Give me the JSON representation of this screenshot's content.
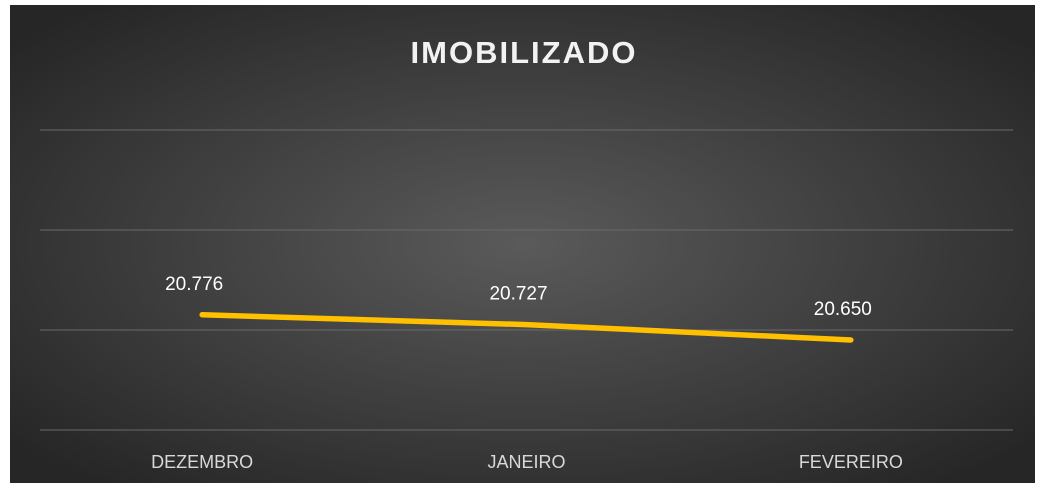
{
  "chart_data": {
    "type": "line",
    "title": "IMOBILIZADO",
    "categories": [
      "DEZEMBRO",
      "JANEIRO",
      "FEVEREIRO"
    ],
    "values": [
      20776,
      20727,
      20650
    ],
    "value_labels": [
      "20.776",
      "20.727",
      "20.650"
    ],
    "color": "#ffc000",
    "ylim": [
      20200,
      21700
    ],
    "yticks": [
      20200,
      20700,
      21200,
      21700
    ],
    "grid": true
  }
}
